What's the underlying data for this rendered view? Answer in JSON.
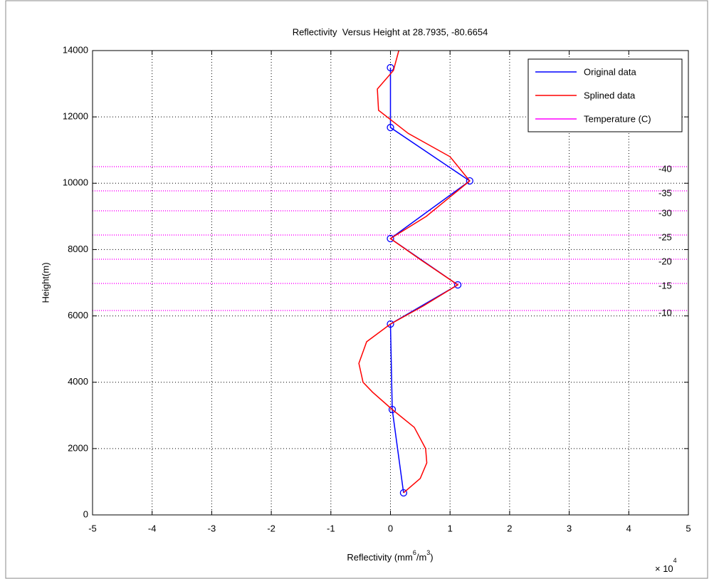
{
  "chart_data": {
    "type": "line",
    "title": "Reflectivity  Versus Height at 28.7935, -80.6654",
    "ylabel": "Height(m)",
    "xlabel_parts": [
      "Reflectivity (mm",
      "6",
      "/m",
      "3",
      ")"
    ],
    "x_multiplier": {
      "base": "× 10",
      "exponent": "4"
    },
    "xlim": [
      -5,
      5
    ],
    "xticks": [
      -5,
      -4,
      -3,
      -2,
      -1,
      0,
      1,
      2,
      3,
      4,
      5
    ],
    "ylim": [
      0,
      14000
    ],
    "yticks": [
      0,
      2000,
      4000,
      6000,
      8000,
      10000,
      12000,
      14000
    ],
    "grid": true,
    "legend": "upper right",
    "series": [
      {
        "name": "Original data",
        "color": "#0000ff",
        "markers": true,
        "x": [
          0.22,
          0.03,
          0.0,
          1.13,
          0.0,
          1.33,
          0.0,
          0.0
        ],
        "values": [
          666,
          3178,
          5755,
          6936,
          8331,
          10070,
          11680,
          13485
        ]
      },
      {
        "name": "Splined data",
        "color": "#ff0000",
        "markers": false,
        "x": [
          0.22,
          0.5,
          0.61,
          0.59,
          0.4,
          0.03,
          -0.3,
          -0.46,
          -0.53,
          -0.4,
          0.0,
          0.55,
          1.13,
          0.5,
          0.0,
          0.6,
          1.33,
          1.0,
          0.3,
          -0.2,
          -0.22,
          0.05,
          0.14
        ],
        "values": [
          666,
          1100,
          1570,
          2000,
          2640,
          3178,
          3700,
          4000,
          4570,
          5220,
          5755,
          6300,
          6936,
          7700,
          8331,
          9000,
          10070,
          10800,
          11500,
          12200,
          12840,
          13400,
          14000
        ]
      }
    ],
    "temperature": {
      "name": "Temperature (C)",
      "color": "#ff00ff",
      "heights": [
        10500,
        9770,
        9169,
        8439,
        7709,
        6979,
        6163
      ],
      "labels": [
        -40,
        -35,
        -30,
        -25,
        -20,
        -15,
        -10
      ]
    }
  }
}
